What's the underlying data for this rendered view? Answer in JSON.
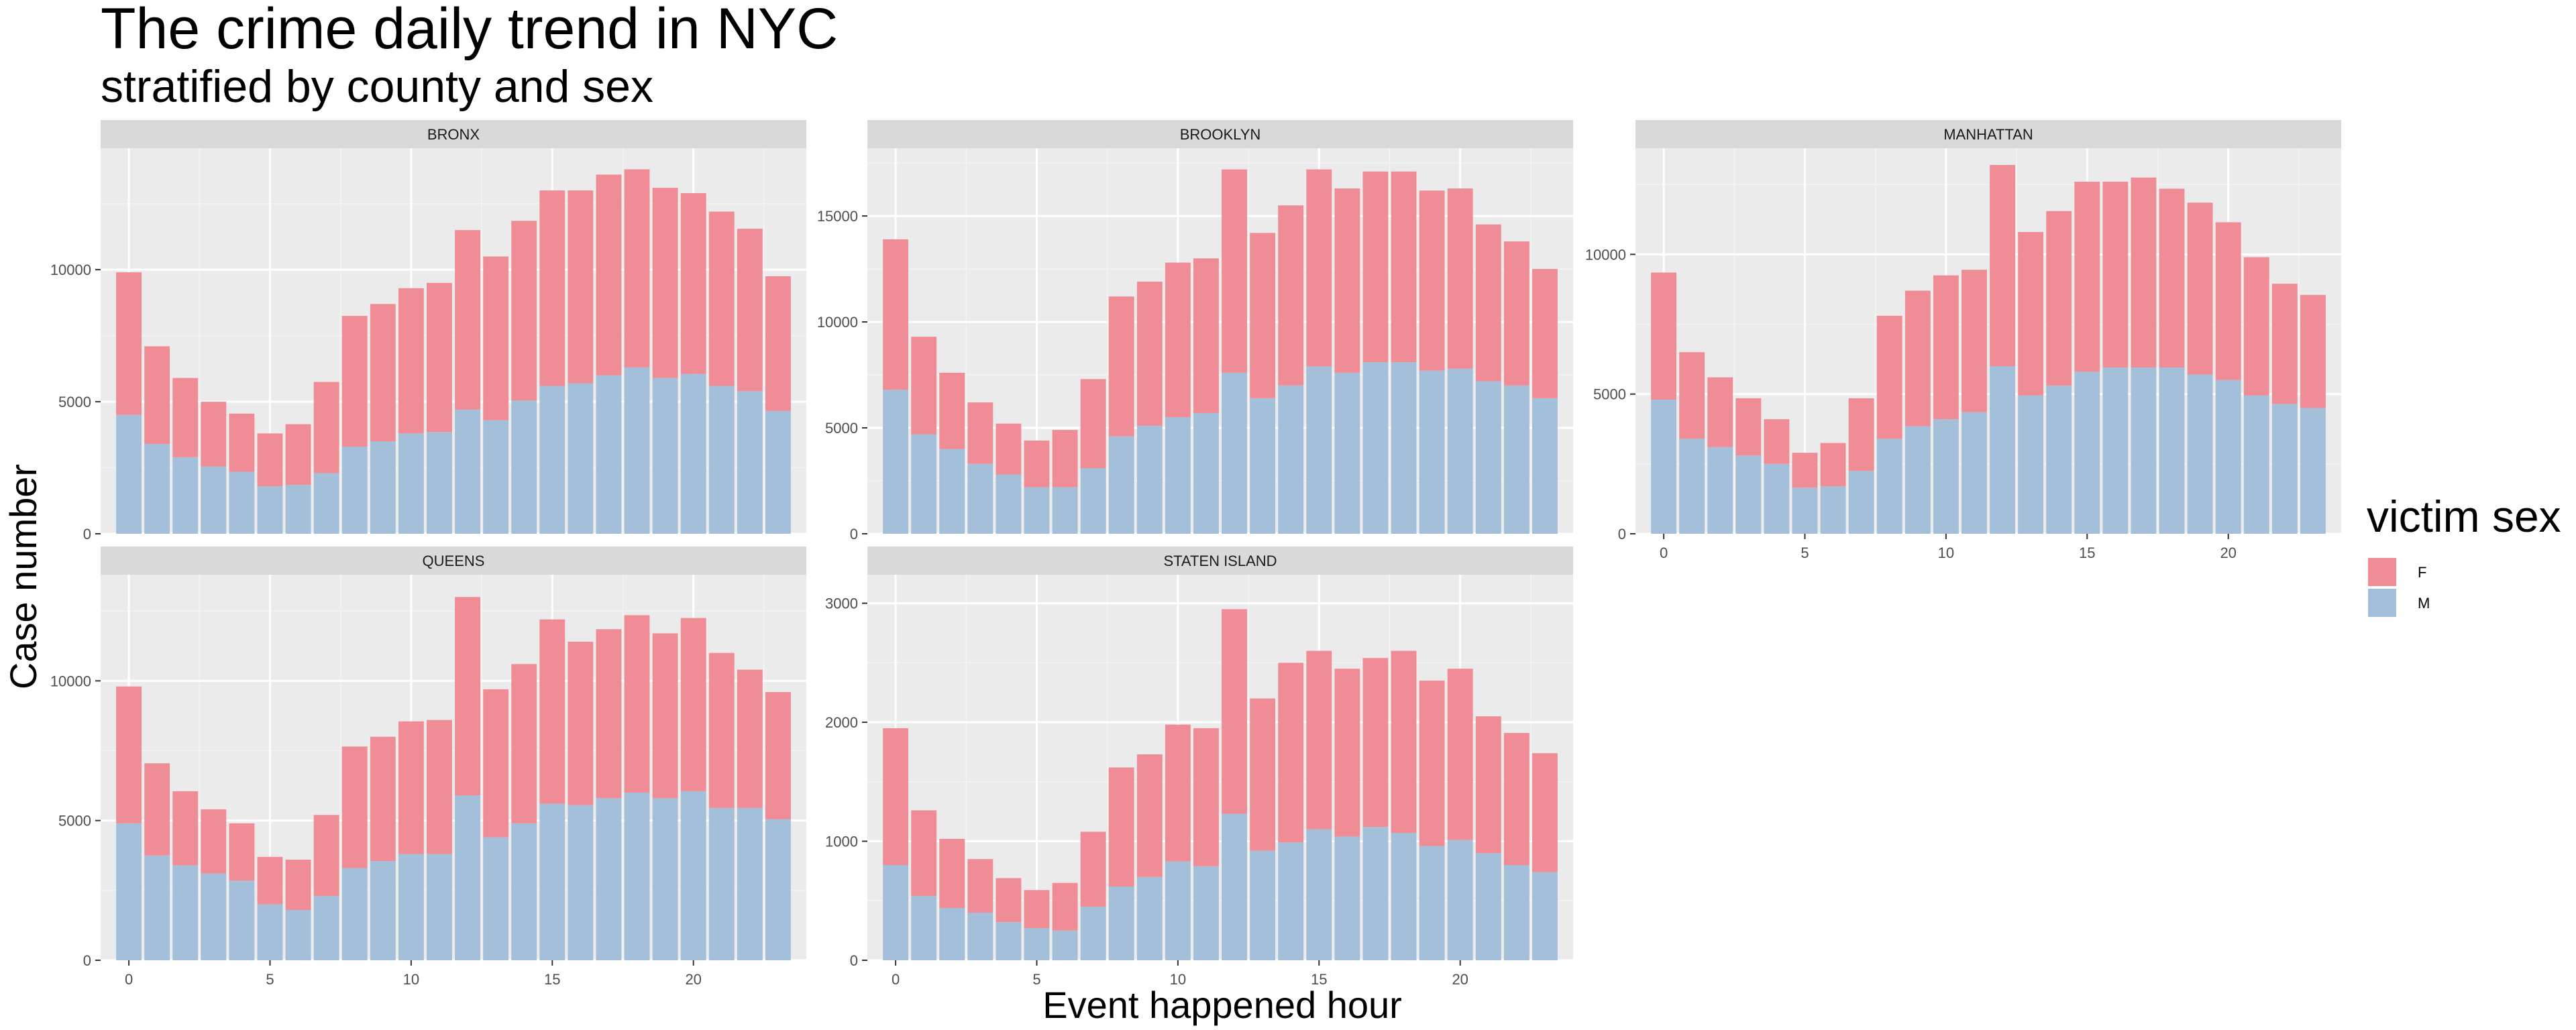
{
  "chart_data": {
    "type": "bar",
    "stacked": true,
    "title": "The crime daily trend in NYC",
    "subtitle": "stratified by county and sex",
    "xlabel": "Event happened hour",
    "ylabel": "Case number",
    "grid": true,
    "legend": {
      "title": "victim sex",
      "position": "right",
      "entries": [
        {
          "label": "F",
          "color": "#F08C96"
        },
        {
          "label": "M",
          "color": "#A3BFD9"
        }
      ]
    },
    "x": [
      0,
      1,
      2,
      3,
      4,
      5,
      6,
      7,
      8,
      9,
      10,
      11,
      12,
      13,
      14,
      15,
      16,
      17,
      18,
      19,
      20,
      21,
      22,
      23
    ],
    "x_ticks": [
      "0",
      "5",
      "10",
      "15",
      "20"
    ],
    "panels": [
      {
        "name": "BRONX",
        "ylim": [
          0,
          14600
        ],
        "y_ticks": [
          "0",
          "5000",
          "10000"
        ],
        "series": [
          {
            "name": "M",
            "values": [
              4500,
              3400,
              2900,
              2550,
              2350,
              1800,
              1850,
              2300,
              3300,
              3500,
              3800,
              3850,
              4700,
              4300,
              5050,
              5600,
              5700,
              6000,
              6300,
              5900,
              6050,
              5600,
              5400,
              4650
            ]
          },
          {
            "name": "F",
            "values": [
              5400,
              3700,
              3000,
              2450,
              2200,
              2000,
              2300,
              3450,
              4950,
              5200,
              5500,
              5650,
              6800,
              6200,
              6800,
              7400,
              7300,
              7600,
              7500,
              7200,
              6850,
              6600,
              6150,
              5100
            ]
          }
        ]
      },
      {
        "name": "BROOKLYN",
        "ylim": [
          0,
          18200
        ],
        "y_ticks": [
          "0",
          "5000",
          "10000",
          "15000"
        ],
        "series": [
          {
            "name": "M",
            "values": [
              6800,
              4700,
              4000,
              3300,
              2800,
              2200,
              2200,
              3100,
              4600,
              5100,
              5500,
              5700,
              7600,
              6400,
              7000,
              7900,
              7600,
              8100,
              8100,
              7700,
              7800,
              7200,
              7000,
              6400
            ]
          },
          {
            "name": "F",
            "values": [
              7100,
              4600,
              3600,
              2900,
              2400,
              2200,
              2700,
              4200,
              6600,
              6800,
              7300,
              7300,
              9600,
              7800,
              8500,
              9300,
              8700,
              9000,
              9000,
              8500,
              8500,
              7400,
              6800,
              6100
            ]
          }
        ]
      },
      {
        "name": "MANHATTAN",
        "ylim": [
          0,
          13800
        ],
        "y_ticks": [
          "0",
          "5000",
          "10000"
        ],
        "series": [
          {
            "name": "M",
            "values": [
              4800,
              3400,
              3100,
              2800,
              2500,
              1650,
              1700,
              2250,
              3400,
              3850,
              4100,
              4350,
              6000,
              4950,
              5300,
              5800,
              5950,
              5950,
              5950,
              5700,
              5500,
              4950,
              4650,
              4500
            ]
          },
          {
            "name": "F",
            "values": [
              4550,
              3100,
              2500,
              2050,
              1600,
              1250,
              1550,
              2600,
              4400,
              4850,
              5150,
              5100,
              7200,
              5850,
              6250,
              6800,
              6650,
              6800,
              6400,
              6150,
              5650,
              4950,
              4300,
              4050
            ]
          }
        ]
      },
      {
        "name": "QUEENS",
        "ylim": [
          0,
          13800
        ],
        "y_ticks": [
          "0",
          "5000",
          "10000"
        ],
        "series": [
          {
            "name": "M",
            "values": [
              4900,
              3750,
              3400,
              3100,
              2850,
              2000,
              1800,
              2300,
              3300,
              3550,
              3800,
              3800,
              5900,
              4400,
              4900,
              5600,
              5550,
              5800,
              6000,
              5800,
              6050,
              5450,
              5450,
              5050
            ]
          },
          {
            "name": "F",
            "values": [
              4900,
              3300,
              2650,
              2300,
              2050,
              1700,
              1800,
              2900,
              4350,
              4450,
              4750,
              4800,
              7100,
              5300,
              5700,
              6600,
              5850,
              6050,
              6350,
              5900,
              6200,
              5550,
              4950,
              4550
            ]
          }
        ]
      },
      {
        "name": "STATEN ISLAND",
        "ylim": [
          0,
          3240
        ],
        "y_ticks": [
          "0",
          "1000",
          "2000",
          "3000"
        ],
        "series": [
          {
            "name": "M",
            "values": [
              800,
              540,
              440,
              400,
              320,
              270,
              250,
              450,
              620,
              700,
              830,
              790,
              1230,
              920,
              990,
              1100,
              1040,
              1120,
              1070,
              960,
              1010,
              900,
              800,
              740
            ]
          },
          {
            "name": "F",
            "values": [
              1150,
              720,
              580,
              450,
              370,
              320,
              400,
              630,
              1000,
              1030,
              1150,
              1160,
              1720,
              1280,
              1510,
              1500,
              1410,
              1420,
              1530,
              1390,
              1440,
              1150,
              1110,
              1000
            ]
          }
        ]
      }
    ]
  }
}
